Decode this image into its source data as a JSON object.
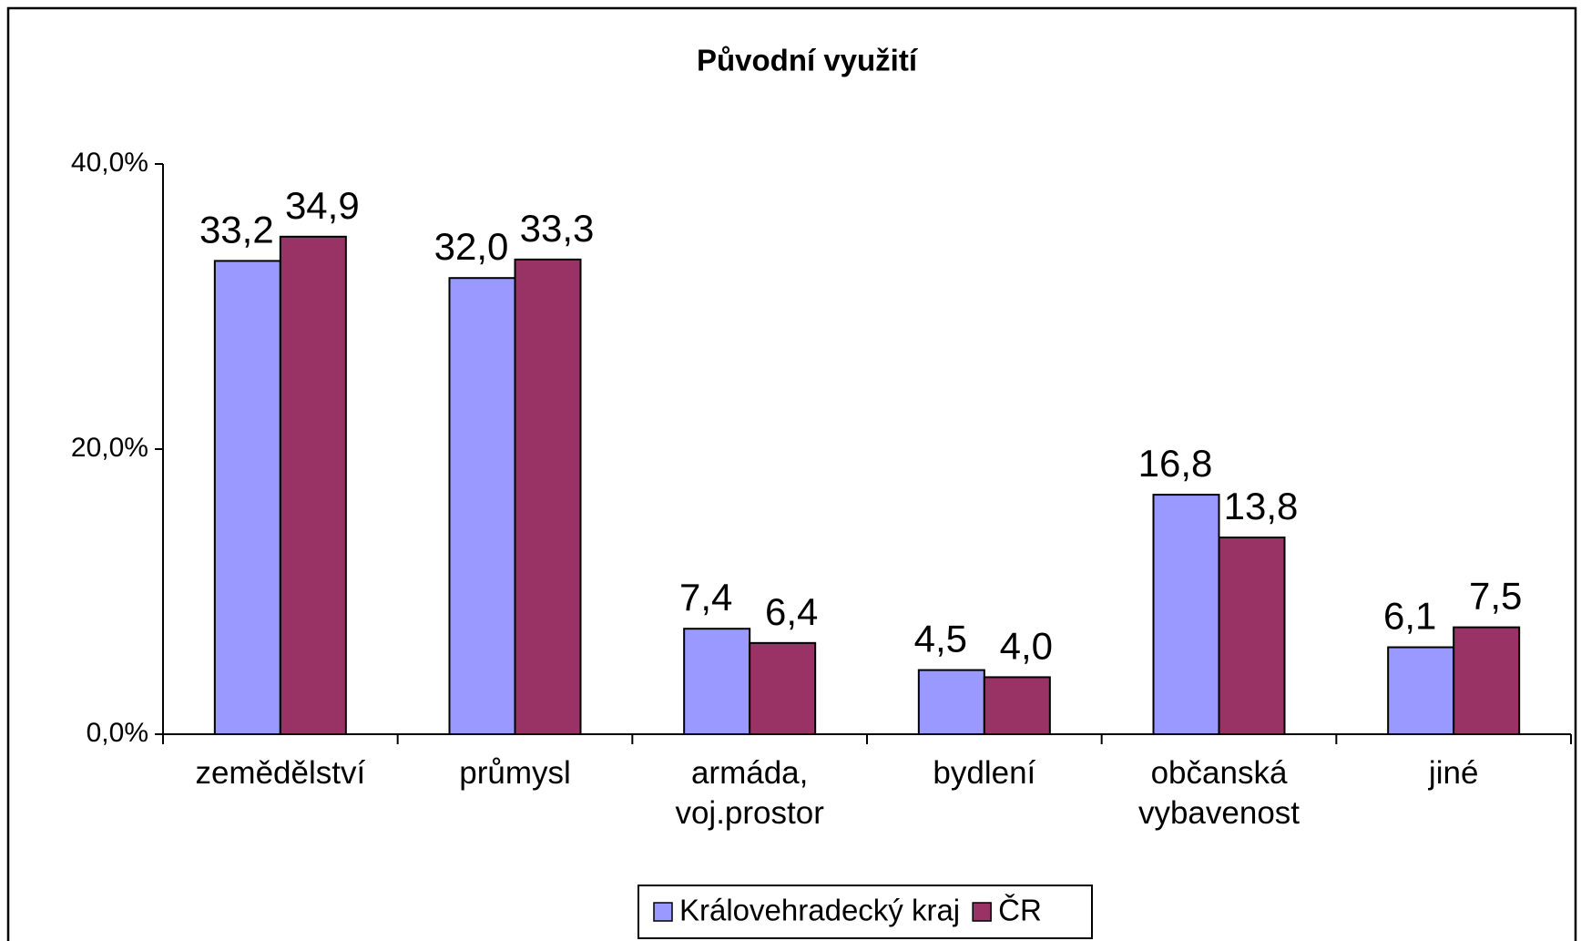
{
  "chart_data": {
    "type": "bar",
    "title": "Původní využití",
    "categories": [
      "zemědělství",
      "průmysl",
      "armáda, voj.prostor",
      "bydlení",
      "občanská vybavenost",
      "jiné"
    ],
    "series": [
      {
        "name": "Královehradecký kraj",
        "color": "#9999ff",
        "values": [
          33.2,
          32.0,
          7.4,
          4.5,
          16.8,
          6.1
        ],
        "value_labels": [
          "33,2",
          "32,0",
          "7,4",
          "4,5",
          "16,8",
          "6,1"
        ]
      },
      {
        "name": "ČR",
        "color": "#993366",
        "values": [
          34.9,
          33.3,
          6.4,
          4.0,
          13.8,
          7.5
        ],
        "value_labels": [
          "34,9",
          "33,3",
          "6,4",
          "4,0",
          "13,8",
          "7,5"
        ]
      }
    ],
    "ylim": [
      0,
      40
    ],
    "yticks": [
      {
        "value": 0,
        "label": "0,0%"
      },
      {
        "value": 20,
        "label": "20,0%"
      },
      {
        "value": 40,
        "label": "40,0%"
      }
    ],
    "legend": "bottom"
  }
}
